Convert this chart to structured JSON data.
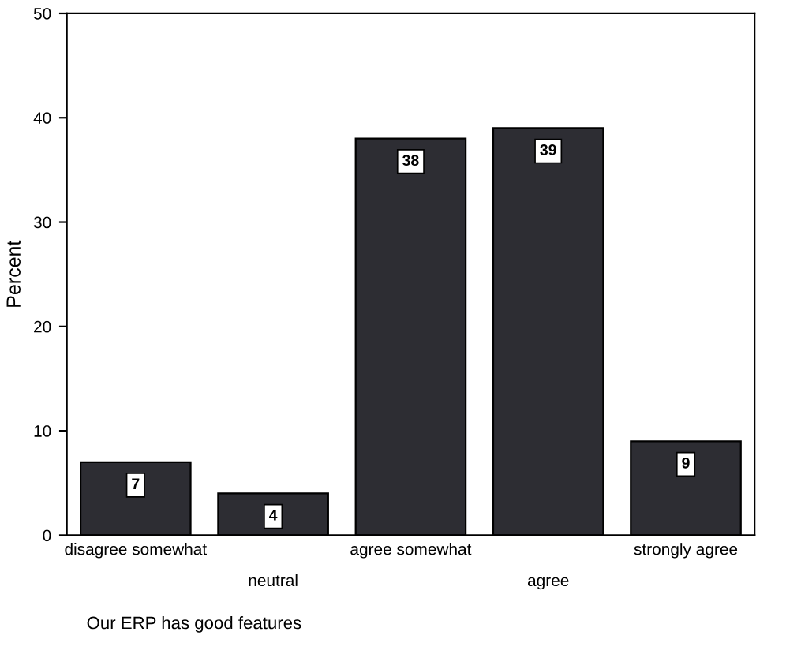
{
  "chart_data": {
    "type": "bar",
    "xlabel": "Our ERP has good features",
    "ylabel": "Percent",
    "categories": [
      "disagree somewhat",
      "neutral",
      "agree somewhat",
      "agree",
      "strongly agree"
    ],
    "values": [
      7,
      4,
      38,
      39,
      9
    ],
    "color": "#2d2d33",
    "ylim": [
      0,
      50
    ],
    "yticks": [
      0,
      10,
      20,
      30,
      40,
      50
    ],
    "grid": false,
    "data_labels": true
  }
}
